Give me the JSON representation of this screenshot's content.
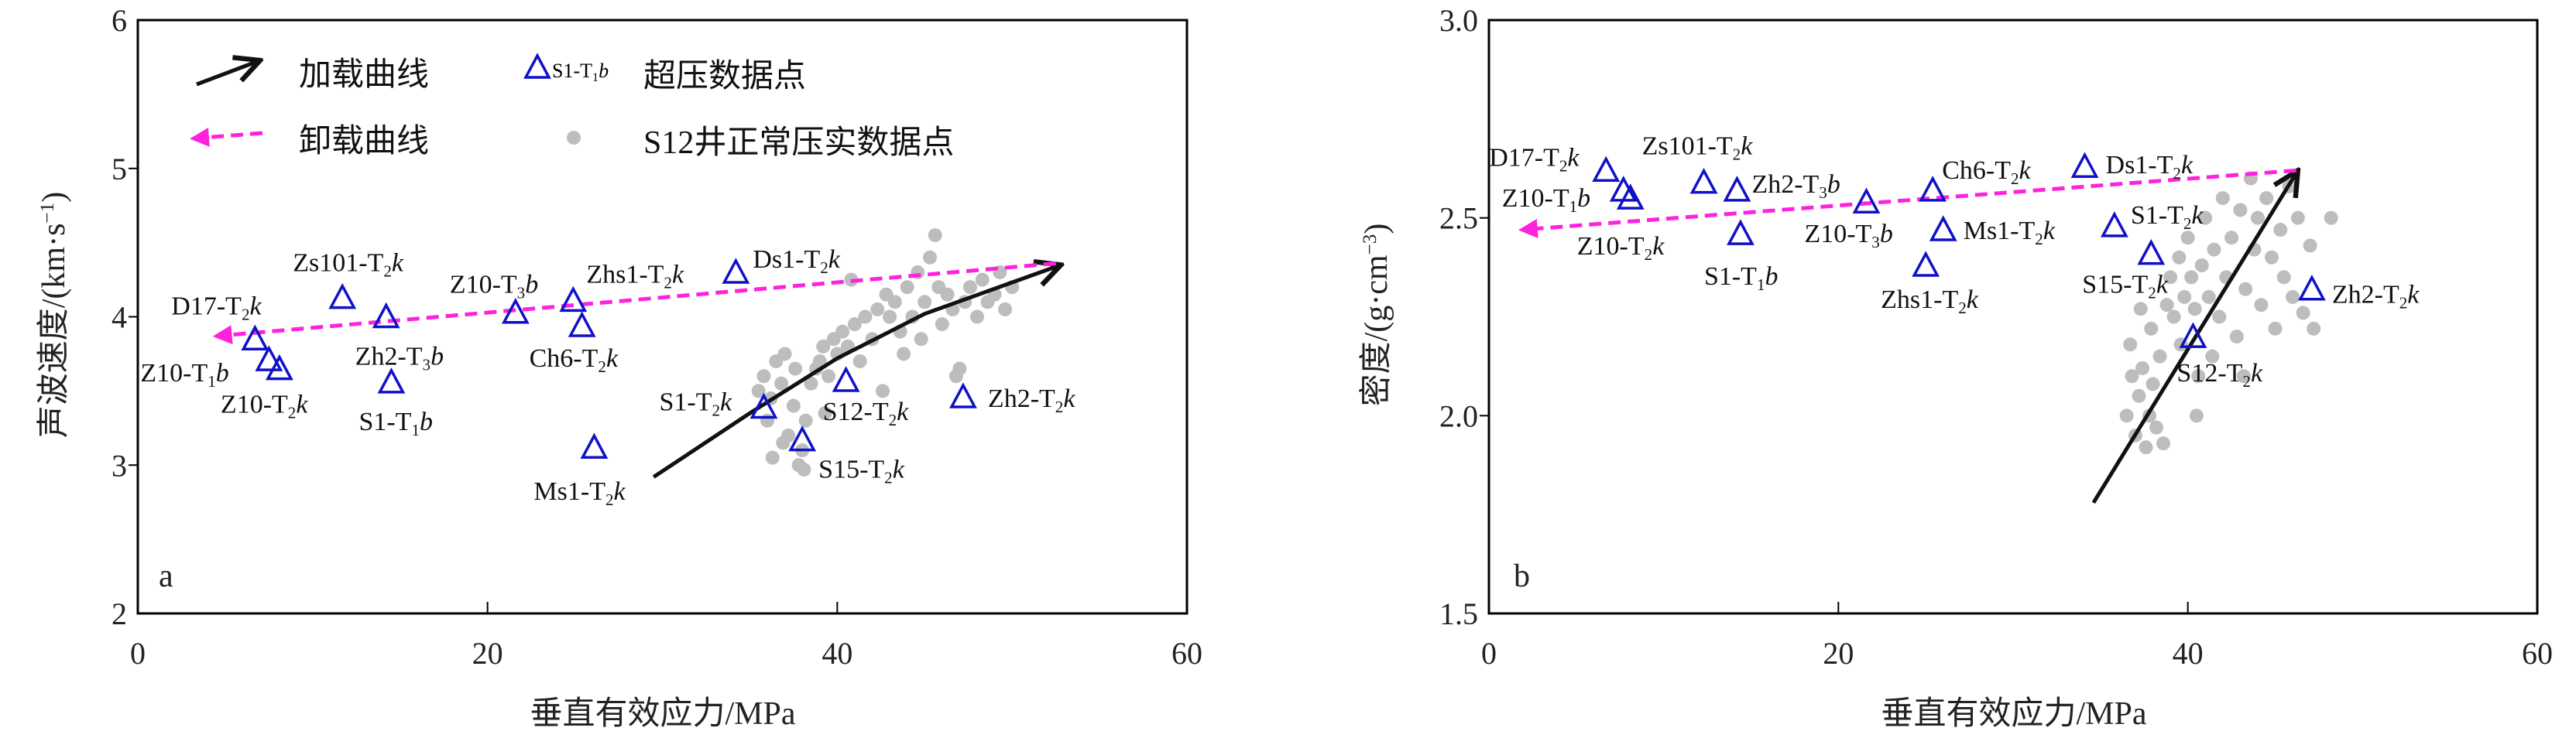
{
  "colors": {
    "triangle": "#1010c8",
    "gray": "#bdbdbd",
    "loading": "#111111",
    "unloading": "#ff22dd",
    "axis": "#000000"
  },
  "legend": {
    "loading": "加载曲线",
    "unloading": "卸载曲线",
    "sample_label": {
      "pre": "S1-T",
      "sub": "1",
      "suf": "b"
    },
    "overpressure": "超压数据点",
    "normal": "S12井正常压实数据点"
  },
  "chart_data": [
    {
      "panel": "a",
      "type": "scatter",
      "xlabel": "垂直有效应力/MPa",
      "ylabel": {
        "pre": "声波速度/(km·s",
        "sup": "−1",
        "suf": ")"
      },
      "xlim": [
        0,
        60
      ],
      "ylim": [
        2,
        6
      ],
      "xticks": [
        "0",
        "20",
        "40",
        "60"
      ],
      "yticks": [
        "2",
        "3",
        "4",
        "5",
        "6"
      ],
      "overpressure_points": [
        {
          "label": {
            "pre": "D17-T",
            "sub": "2",
            "suf": "k"
          },
          "x": 6.7,
          "y": 3.85
        },
        {
          "label": {
            "pre": "Z10-T",
            "sub": "1",
            "suf": "b"
          },
          "x": 7.5,
          "y": 3.71
        },
        {
          "label": {
            "pre": "Z10-T",
            "sub": "2",
            "suf": "k"
          },
          "x": 8.1,
          "y": 3.65
        },
        {
          "label": {
            "pre": "Zs101-T",
            "sub": "2",
            "suf": "k"
          },
          "x": 11.7,
          "y": 4.13
        },
        {
          "label": {
            "pre": "Zh2-T",
            "sub": "3",
            "suf": "b"
          },
          "x": 14.2,
          "y": 4.0
        },
        {
          "label": {
            "pre": "S1-T",
            "sub": "1",
            "suf": "b"
          },
          "x": 14.5,
          "y": 3.56
        },
        {
          "label": {
            "pre": "Z10-T",
            "sub": "3",
            "suf": "b"
          },
          "x": 21.6,
          "y": 4.03
        },
        {
          "label": {
            "pre": "Zhs1-T",
            "sub": "2",
            "suf": "k"
          },
          "x": 24.9,
          "y": 4.11
        },
        {
          "label": {
            "pre": "Ch6-T",
            "sub": "2",
            "suf": "k"
          },
          "x": 25.4,
          "y": 3.94
        },
        {
          "label": {
            "pre": "Ds1-T",
            "sub": "2",
            "suf": "k"
          },
          "x": 34.2,
          "y": 4.3
        },
        {
          "label": {
            "pre": "Ms1-T",
            "sub": "2",
            "suf": "k"
          },
          "x": 26.1,
          "y": 3.12
        },
        {
          "label": {
            "pre": "S1-T",
            "sub": "2",
            "suf": "k"
          },
          "x": 35.8,
          "y": 3.39
        },
        {
          "label": {
            "pre": "S12-T",
            "sub": "2",
            "suf": "k"
          },
          "x": 40.5,
          "y": 3.57
        },
        {
          "label": {
            "pre": "S15-T",
            "sub": "2",
            "suf": "k"
          },
          "x": 38.0,
          "y": 3.17
        },
        {
          "label": {
            "pre": "Zh2-T",
            "sub": "2",
            "suf": "k"
          },
          "x": 47.2,
          "y": 3.46
        }
      ],
      "normal_points": [
        [
          35.5,
          3.5
        ],
        [
          35.8,
          3.6
        ],
        [
          36,
          3.3
        ],
        [
          36.2,
          3.45
        ],
        [
          36.5,
          3.7
        ],
        [
          36.8,
          3.55
        ],
        [
          37,
          3.75
        ],
        [
          37.2,
          3.2
        ],
        [
          37.5,
          3.4
        ],
        [
          37.8,
          3.0
        ],
        [
          38,
          3.1
        ],
        [
          38.2,
          3.3
        ],
        [
          38.5,
          3.55
        ],
        [
          38.8,
          3.65
        ],
        [
          39,
          3.7
        ],
        [
          39.2,
          3.8
        ],
        [
          39.5,
          3.6
        ],
        [
          39.8,
          3.85
        ],
        [
          40,
          3.75
        ],
        [
          40.3,
          3.9
        ],
        [
          40.6,
          3.8
        ],
        [
          41,
          3.95
        ],
        [
          41.3,
          3.7
        ],
        [
          41.6,
          4.0
        ],
        [
          42,
          3.85
        ],
        [
          42.3,
          4.05
        ],
        [
          42.6,
          3.5
        ],
        [
          43,
          4.0
        ],
        [
          43.3,
          4.1
        ],
        [
          43.6,
          3.9
        ],
        [
          44,
          4.2
        ],
        [
          44.3,
          4.0
        ],
        [
          44.6,
          4.3
        ],
        [
          45,
          4.1
        ],
        [
          45.3,
          4.4
        ],
        [
          45.6,
          4.55
        ],
        [
          45.8,
          4.2
        ],
        [
          46,
          3.95
        ],
        [
          46.3,
          4.15
        ],
        [
          46.6,
          4.05
        ],
        [
          47,
          3.65
        ],
        [
          47.3,
          4.1
        ],
        [
          47.6,
          4.2
        ],
        [
          48,
          4.0
        ],
        [
          48.3,
          4.25
        ],
        [
          48.6,
          4.1
        ],
        [
          49,
          4.15
        ],
        [
          49.3,
          4.3
        ],
        [
          49.6,
          4.05
        ],
        [
          50,
          4.2
        ],
        [
          36.3,
          3.05
        ],
        [
          37.6,
          3.65
        ],
        [
          40.8,
          4.25
        ],
        [
          43.8,
          3.75
        ],
        [
          46.8,
          3.6
        ],
        [
          44.8,
          3.85
        ],
        [
          42.8,
          4.15
        ],
        [
          39.3,
          3.35
        ],
        [
          38.1,
          2.97
        ],
        [
          36.9,
          3.15
        ]
      ],
      "loading_curve": [
        [
          29.5,
          2.92
        ],
        [
          35,
          3.35
        ],
        [
          40,
          3.72
        ],
        [
          45,
          4.02
        ],
        [
          52.8,
          4.35
        ]
      ],
      "unloading_curve": [
        [
          52.5,
          4.36
        ],
        [
          4.5,
          3.87
        ]
      ]
    },
    {
      "panel": "b",
      "type": "scatter",
      "xlabel": "垂直有效应力/MPa",
      "ylabel": {
        "pre": "密度/(g·cm",
        "sup": "−3",
        "suf": ")"
      },
      "xlim": [
        0,
        60
      ],
      "ylim": [
        1.5,
        3.0
      ],
      "xticks": [
        "0",
        "20",
        "40",
        "60"
      ],
      "yticks": [
        "1.5",
        "2.0",
        "2.5",
        "3.0"
      ],
      "overpressure_points": [
        {
          "label": {
            "pre": "D17-T",
            "sub": "2",
            "suf": "k"
          },
          "x": 6.7,
          "y": 2.62
        },
        {
          "label": {
            "pre": "Z10-T",
            "sub": "1",
            "suf": "b"
          },
          "x": 7.7,
          "y": 2.57
        },
        {
          "label": {
            "pre": "Z10-T",
            "sub": "2",
            "suf": "k"
          },
          "x": 8.1,
          "y": 2.55
        },
        {
          "label": {
            "pre": "Zs101-T",
            "sub": "2",
            "suf": "k"
          },
          "x": 12.3,
          "y": 2.59
        },
        {
          "label": {
            "pre": "Zh2-T",
            "sub": "3",
            "suf": "b"
          },
          "x": 14.2,
          "y": 2.57
        },
        {
          "label": {
            "pre": "S1-T",
            "sub": "1",
            "suf": "b"
          },
          "x": 14.4,
          "y": 2.46
        },
        {
          "label": {
            "pre": "Z10-T",
            "sub": "3",
            "suf": "b"
          },
          "x": 21.6,
          "y": 2.54
        },
        {
          "label": {
            "pre": "Ch6-T",
            "sub": "2",
            "suf": "k"
          },
          "x": 25.4,
          "y": 2.57
        },
        {
          "label": {
            "pre": "Ms1-T",
            "sub": "2",
            "suf": "k"
          },
          "x": 26.0,
          "y": 2.47
        },
        {
          "label": {
            "pre": "Zhs1-T",
            "sub": "2",
            "suf": "k"
          },
          "x": 25.0,
          "y": 2.38
        },
        {
          "label": {
            "pre": "Ds1-T",
            "sub": "2",
            "suf": "k"
          },
          "x": 34.1,
          "y": 2.63
        },
        {
          "label": {
            "pre": "S1-T",
            "sub": "2",
            "suf": "k"
          },
          "x": 35.8,
          "y": 2.48
        },
        {
          "label": {
            "pre": "S15-T",
            "sub": "2",
            "suf": "k"
          },
          "x": 37.9,
          "y": 2.41
        },
        {
          "label": {
            "pre": "S12-T",
            "sub": "2",
            "suf": "k"
          },
          "x": 40.3,
          "y": 2.2
        },
        {
          "label": {
            "pre": "Zh2-T",
            "sub": "2",
            "suf": "k"
          },
          "x": 47.1,
          "y": 2.32
        }
      ],
      "normal_points": [
        [
          36.5,
          2.0
        ],
        [
          36.8,
          2.1
        ],
        [
          37,
          1.95
        ],
        [
          37.2,
          2.05
        ],
        [
          37.4,
          2.12
        ],
        [
          37.6,
          1.92
        ],
        [
          37.8,
          2.0
        ],
        [
          38,
          2.08
        ],
        [
          38.2,
          1.97
        ],
        [
          38.4,
          2.15
        ],
        [
          36.7,
          2.18
        ],
        [
          37.9,
          2.22
        ],
        [
          38.8,
          2.28
        ],
        [
          39,
          2.35
        ],
        [
          39.2,
          2.25
        ],
        [
          39.5,
          2.4
        ],
        [
          39.8,
          2.3
        ],
        [
          40,
          2.45
        ],
        [
          40.2,
          2.35
        ],
        [
          40.4,
          2.27
        ],
        [
          40.6,
          2.1
        ],
        [
          40.5,
          2.0
        ],
        [
          40.8,
          2.38
        ],
        [
          41,
          2.5
        ],
        [
          41.2,
          2.3
        ],
        [
          41.5,
          2.42
        ],
        [
          41.8,
          2.25
        ],
        [
          42,
          2.55
        ],
        [
          42.2,
          2.35
        ],
        [
          42.5,
          2.45
        ],
        [
          42.8,
          2.2
        ],
        [
          43,
          2.52
        ],
        [
          43.3,
          2.32
        ],
        [
          43.6,
          2.6
        ],
        [
          43.8,
          2.42
        ],
        [
          44,
          2.5
        ],
        [
          44.2,
          2.28
        ],
        [
          44.5,
          2.55
        ],
        [
          44.8,
          2.4
        ],
        [
          45,
          2.22
        ],
        [
          45.3,
          2.47
        ],
        [
          45.5,
          2.35
        ],
        [
          45.8,
          2.58
        ],
        [
          46,
          2.3
        ],
        [
          46.3,
          2.5
        ],
        [
          46.6,
          2.26
        ],
        [
          47,
          2.43
        ],
        [
          47.2,
          2.22
        ],
        [
          48.2,
          2.5
        ],
        [
          39.6,
          2.18
        ],
        [
          41.4,
          2.15
        ],
        [
          43.2,
          2.1
        ],
        [
          38.6,
          1.93
        ],
        [
          37.3,
          2.27
        ]
      ],
      "loading_curve": [
        [
          34.6,
          1.78
        ],
        [
          46.3,
          2.62
        ]
      ],
      "unloading_curve": [
        [
          46.2,
          2.62
        ],
        [
          1.9,
          2.47
        ]
      ]
    }
  ]
}
